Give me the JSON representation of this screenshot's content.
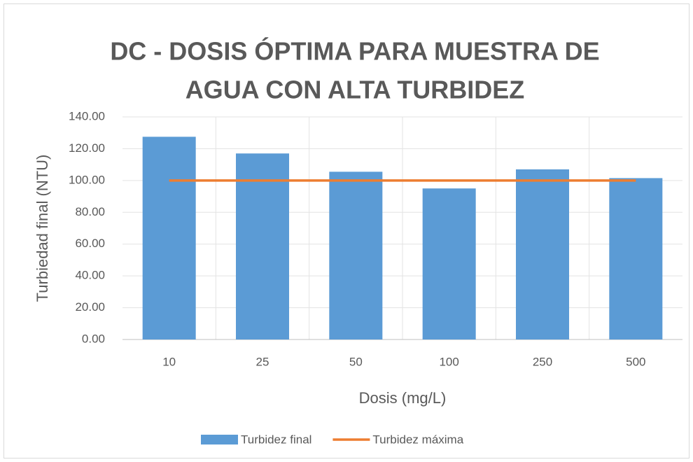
{
  "chart_data": {
    "type": "bar",
    "title": [
      "DC - DOSIS ÓPTIMA PARA MUESTRA DE",
      "AGUA CON ALTA TURBIDEZ"
    ],
    "x_label": "Dosis (mg/L)",
    "y_label": "Turbiedad final (NTU)",
    "categories": [
      "10",
      "25",
      "50",
      "100",
      "250",
      "500"
    ],
    "series": [
      {
        "name": "Turbidez final",
        "type": "bar",
        "color": "#5b9bd5",
        "values": [
          127.5,
          117,
          105.5,
          95,
          107,
          101.5
        ]
      },
      {
        "name": "Turbidez máxima",
        "type": "line",
        "color": "#ed7d31",
        "values": [
          100,
          100,
          100,
          100,
          100,
          100
        ]
      }
    ],
    "ylim": [
      0,
      140
    ],
    "yticks": [
      {
        "value": 0,
        "label": "0.00"
      },
      {
        "value": 20,
        "label": "20.00"
      },
      {
        "value": 40,
        "label": "40.00"
      },
      {
        "value": 60,
        "label": "60.00"
      },
      {
        "value": 80,
        "label": "80.00"
      },
      {
        "value": 100,
        "label": "100.00"
      },
      {
        "value": 120,
        "label": "120.00"
      },
      {
        "value": 140,
        "label": "140.00"
      }
    ],
    "grid": true,
    "legend": "bottom"
  }
}
